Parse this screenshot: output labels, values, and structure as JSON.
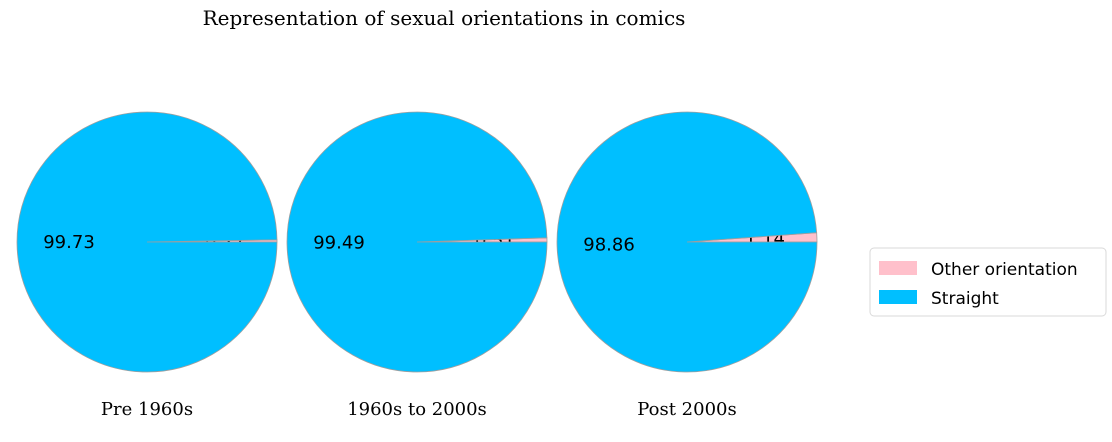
{
  "chart_data": {
    "type": "pie",
    "title": "Representation of sexual orientations in comics",
    "labels": [
      "Other orientation",
      "Straight"
    ],
    "colors": {
      "Other orientation": "#ffc0cb",
      "Straight": "#00bfff"
    },
    "edge_color": "#9e9e9e",
    "legend": {
      "placement": "right",
      "entries": [
        "Other orientation",
        "Straight"
      ]
    },
    "pies": [
      {
        "caption": "Pre 1960s",
        "values": [
          0.27,
          99.73
        ],
        "labels_text": [
          "0.27",
          "99.73"
        ]
      },
      {
        "caption": "1960s to 2000s",
        "values": [
          0.51,
          99.49
        ],
        "labels_text": [
          "0.51",
          "99.49"
        ]
      },
      {
        "caption": "Post 2000s",
        "values": [
          1.14,
          98.86
        ],
        "labels_text": [
          "1.14",
          "98.86"
        ]
      }
    ]
  }
}
